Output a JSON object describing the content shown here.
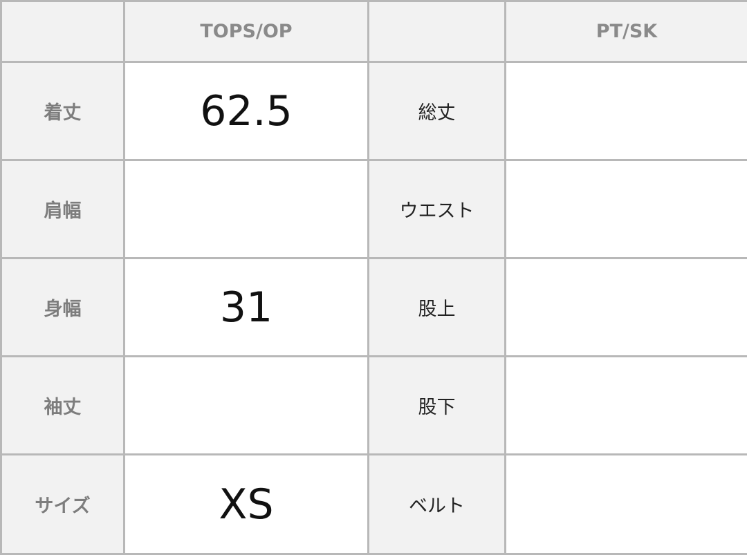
{
  "headers": {
    "corner": "",
    "tops": "TOPS/OP",
    "mid": "",
    "pants": "PT/SK"
  },
  "rows": [
    {
      "tops_label": "着丈",
      "tops_value": "62.5",
      "pants_label": "総丈",
      "pants_value": ""
    },
    {
      "tops_label": "肩幅",
      "tops_value": "",
      "pants_label": "ウエスト",
      "pants_value": ""
    },
    {
      "tops_label": "身幅",
      "tops_value": "31",
      "pants_label": "股上",
      "pants_value": ""
    },
    {
      "tops_label": "袖丈",
      "tops_value": "",
      "pants_label": "股下",
      "pants_value": ""
    },
    {
      "tops_label": "サイズ",
      "tops_value": "XS",
      "pants_label": "ベルト",
      "pants_value": ""
    }
  ]
}
